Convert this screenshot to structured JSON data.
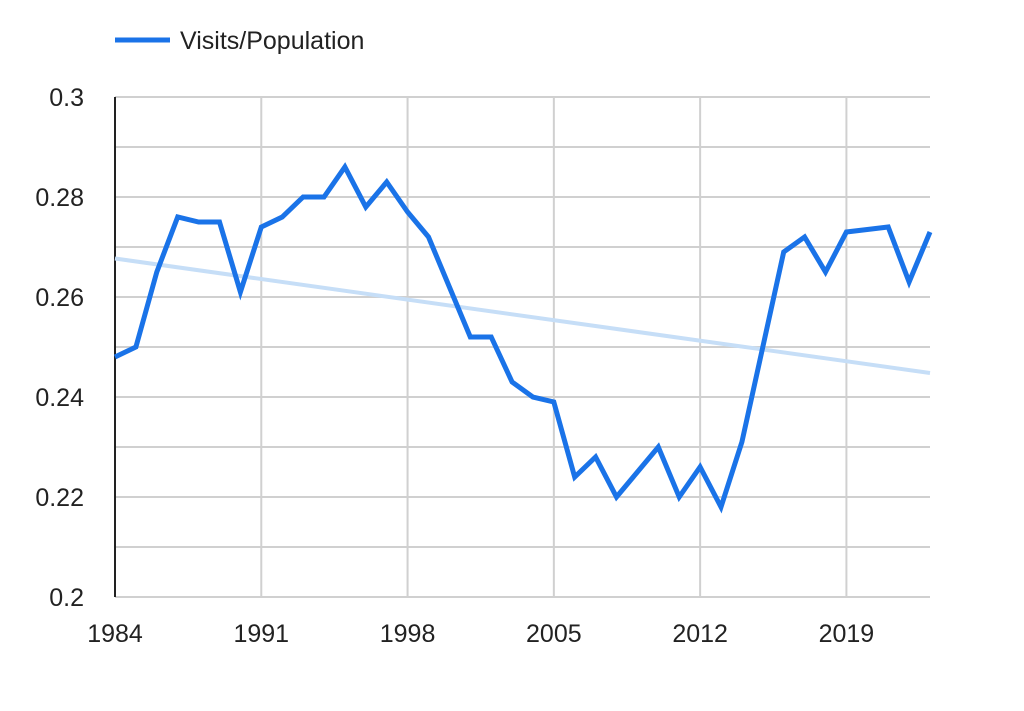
{
  "chart_data": {
    "type": "line",
    "title": "",
    "xlabel": "",
    "ylabel": "",
    "xlim": [
      1984,
      2023
    ],
    "ylim": [
      0.2,
      0.3
    ],
    "x_ticks": [
      1984,
      1991,
      1998,
      2005,
      2012,
      2019
    ],
    "y_ticks": [
      0.2,
      0.22,
      0.24,
      0.26,
      0.28,
      0.3
    ],
    "grid": true,
    "legend_position": "top-left",
    "series": [
      {
        "name": "Visits/Population",
        "color": "#1a73e8",
        "x": [
          1984,
          1985,
          1986,
          1987,
          1988,
          1989,
          1990,
          1991,
          1992,
          1993,
          1994,
          1995,
          1996,
          1997,
          1998,
          1999,
          2000,
          2001,
          2002,
          2003,
          2004,
          2005,
          2006,
          2007,
          2008,
          2009,
          2010,
          2011,
          2012,
          2013,
          2014,
          2015,
          2016,
          2017,
          2018,
          2019,
          2020,
          2021,
          2022,
          2023
        ],
        "values": [
          0.248,
          0.25,
          0.265,
          0.276,
          0.275,
          0.275,
          0.261,
          0.274,
          0.276,
          0.28,
          0.28,
          0.286,
          0.278,
          0.283,
          0.277,
          0.272,
          0.262,
          0.252,
          0.252,
          0.243,
          0.24,
          0.239,
          0.224,
          0.228,
          0.22,
          0.225,
          0.23,
          0.22,
          0.226,
          0.218,
          0.231,
          0.25,
          0.269,
          0.272,
          0.265,
          0.273,
          0.2735,
          0.274,
          0.263,
          0.273
        ]
      }
    ],
    "trendline": {
      "color": "#c6def7",
      "x": [
        1984,
        2023
      ],
      "values": [
        0.2677,
        0.2448
      ]
    }
  }
}
